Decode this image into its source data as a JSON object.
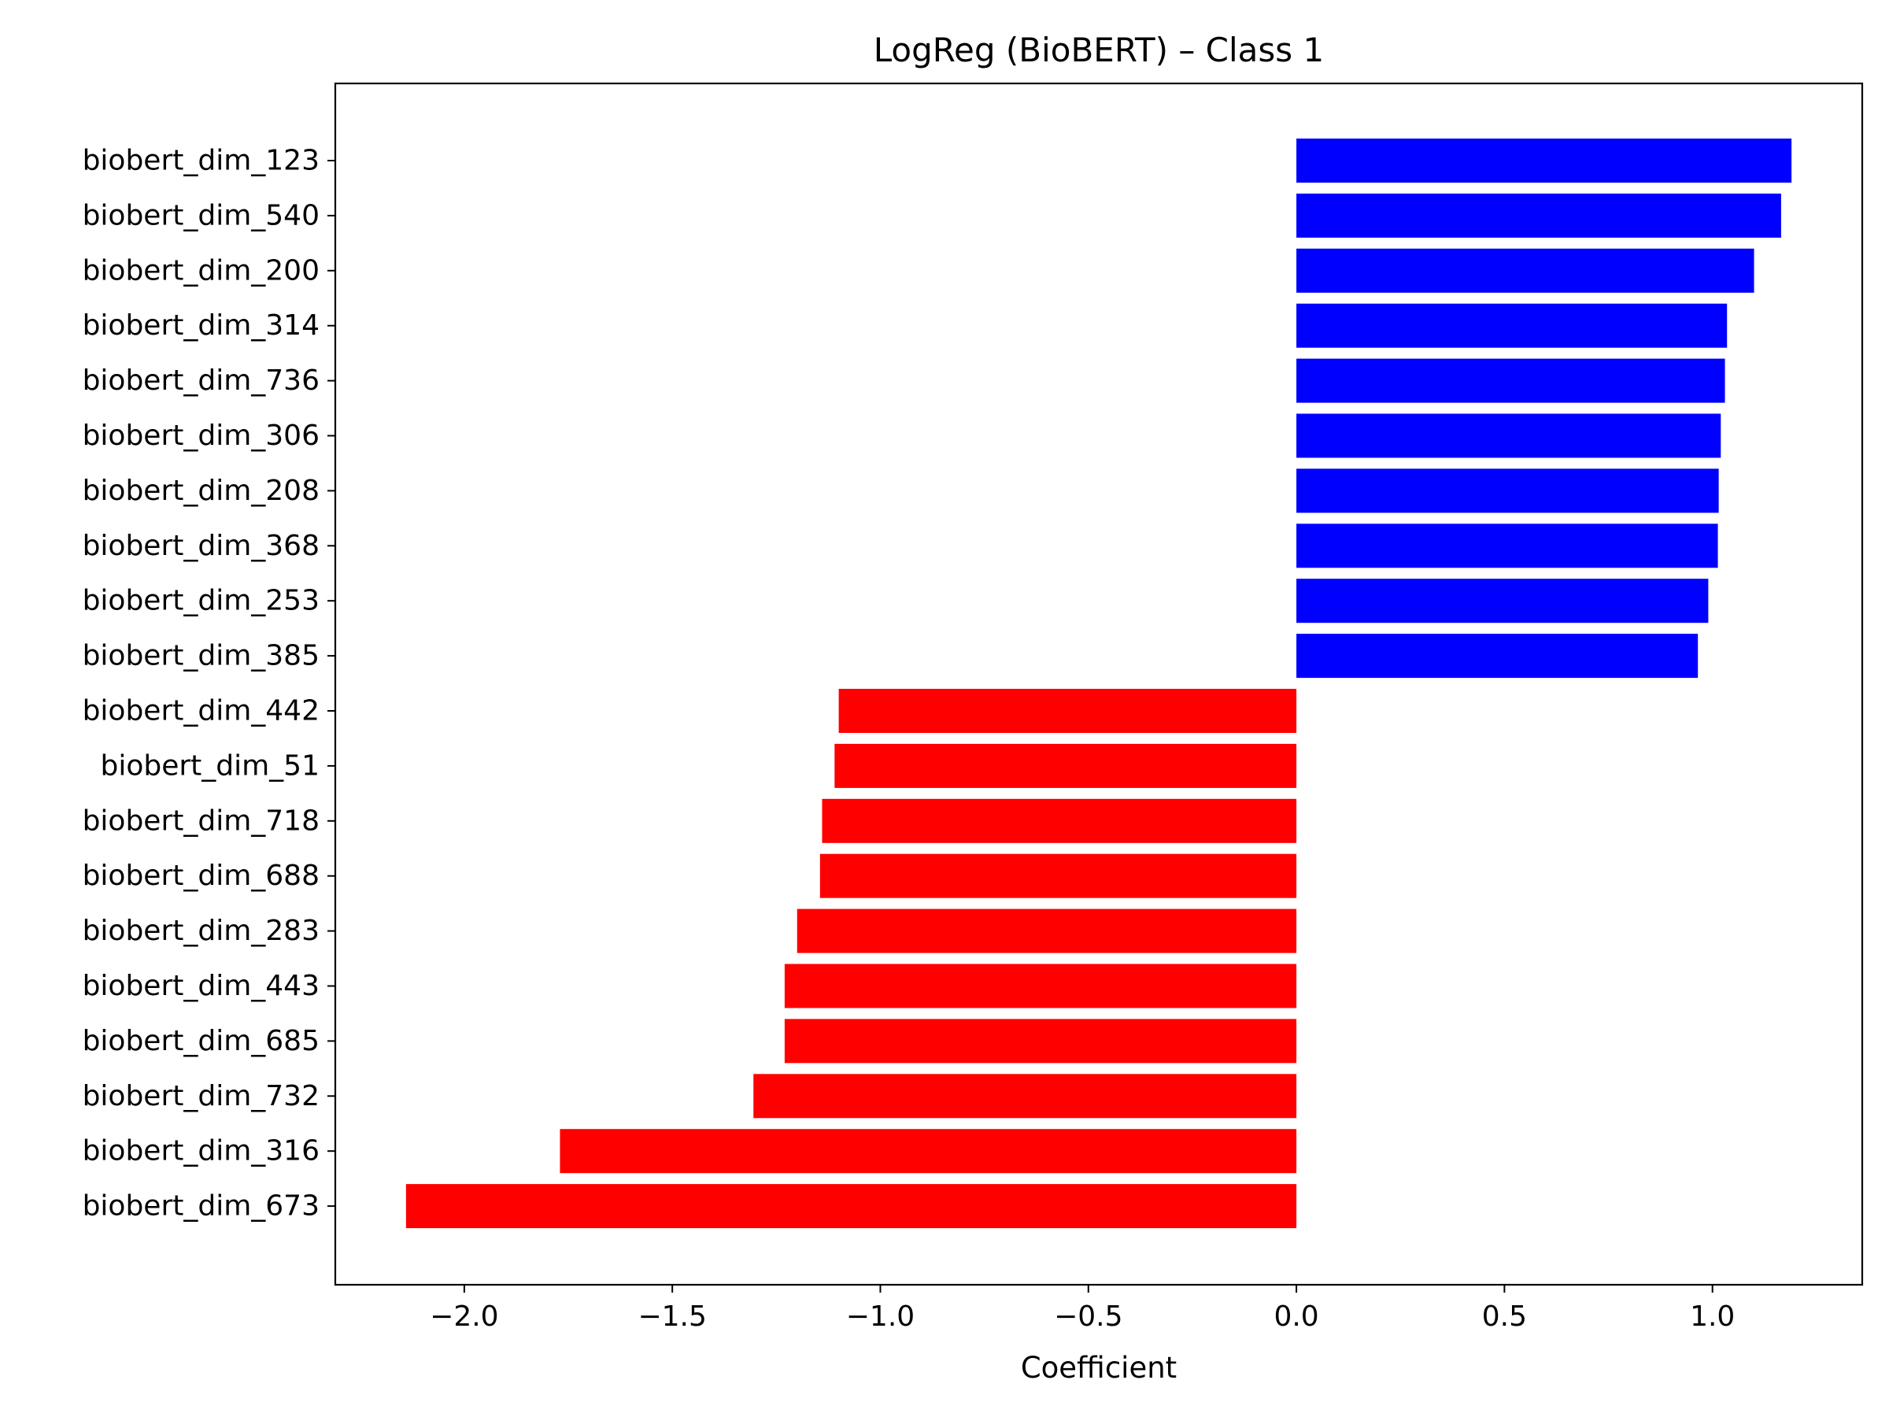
{
  "chart_data": {
    "type": "bar",
    "orientation": "horizontal",
    "title": "LogReg (BioBERT) – Class 1",
    "xlabel": "Coefficient",
    "ylabel": "",
    "xlim": [
      -2.31,
      1.36
    ],
    "xticks": [
      -2.0,
      -1.5,
      -1.0,
      -0.5,
      0.0,
      0.5,
      1.0
    ],
    "xtick_labels": [
      "−2.0",
      "−1.5",
      "−1.0",
      "−0.5",
      "0.0",
      "0.5",
      "1.0"
    ],
    "grid": false,
    "legend": "none",
    "colors": {
      "positive": "#0000ff",
      "negative": "#ff0000"
    },
    "categories": [
      "biobert_dim_123",
      "biobert_dim_540",
      "biobert_dim_200",
      "biobert_dim_314",
      "biobert_dim_736",
      "biobert_dim_306",
      "biobert_dim_208",
      "biobert_dim_368",
      "biobert_dim_253",
      "biobert_dim_385",
      "biobert_dim_442",
      "biobert_dim_51",
      "biobert_dim_718",
      "biobert_dim_688",
      "biobert_dim_283",
      "biobert_dim_443",
      "biobert_dim_685",
      "biobert_dim_732",
      "biobert_dim_316",
      "biobert_dim_673"
    ],
    "values": [
      1.19,
      1.165,
      1.1,
      1.035,
      1.03,
      1.02,
      1.015,
      1.013,
      0.99,
      0.965,
      -1.1,
      -1.11,
      -1.14,
      -1.145,
      -1.2,
      -1.23,
      -1.23,
      -1.305,
      -1.77,
      -2.14
    ]
  }
}
